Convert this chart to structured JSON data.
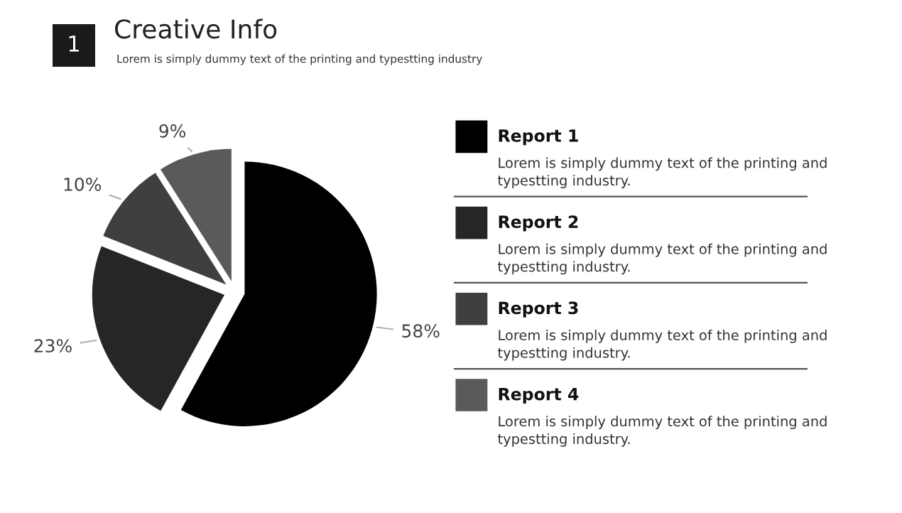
{
  "chart_data": {
    "type": "pie",
    "title": "Creative Info",
    "subtitle": "Lorem is simply dummy text of the printing and typestting industry",
    "categories": [
      "Report 1",
      "Report 2",
      "Report 3",
      "Report 4"
    ],
    "values": [
      58,
      23,
      10,
      9
    ],
    "value_labels": [
      "58%",
      "23%",
      "10%",
      "9%"
    ],
    "colors": [
      "#000000",
      "#262626",
      "#3f3f3f",
      "#5a5a5a"
    ],
    "legend": "right",
    "annotations": [
      "1",
      "Lorem is simply dummy text of the printing and typestting industry.",
      "Lorem is simply dummy text of the printing and typestting industry.",
      "Lorem is simply dummy text of the printing and typestting industry.",
      "Lorem is simply dummy text of the printing and typestting industry."
    ]
  }
}
